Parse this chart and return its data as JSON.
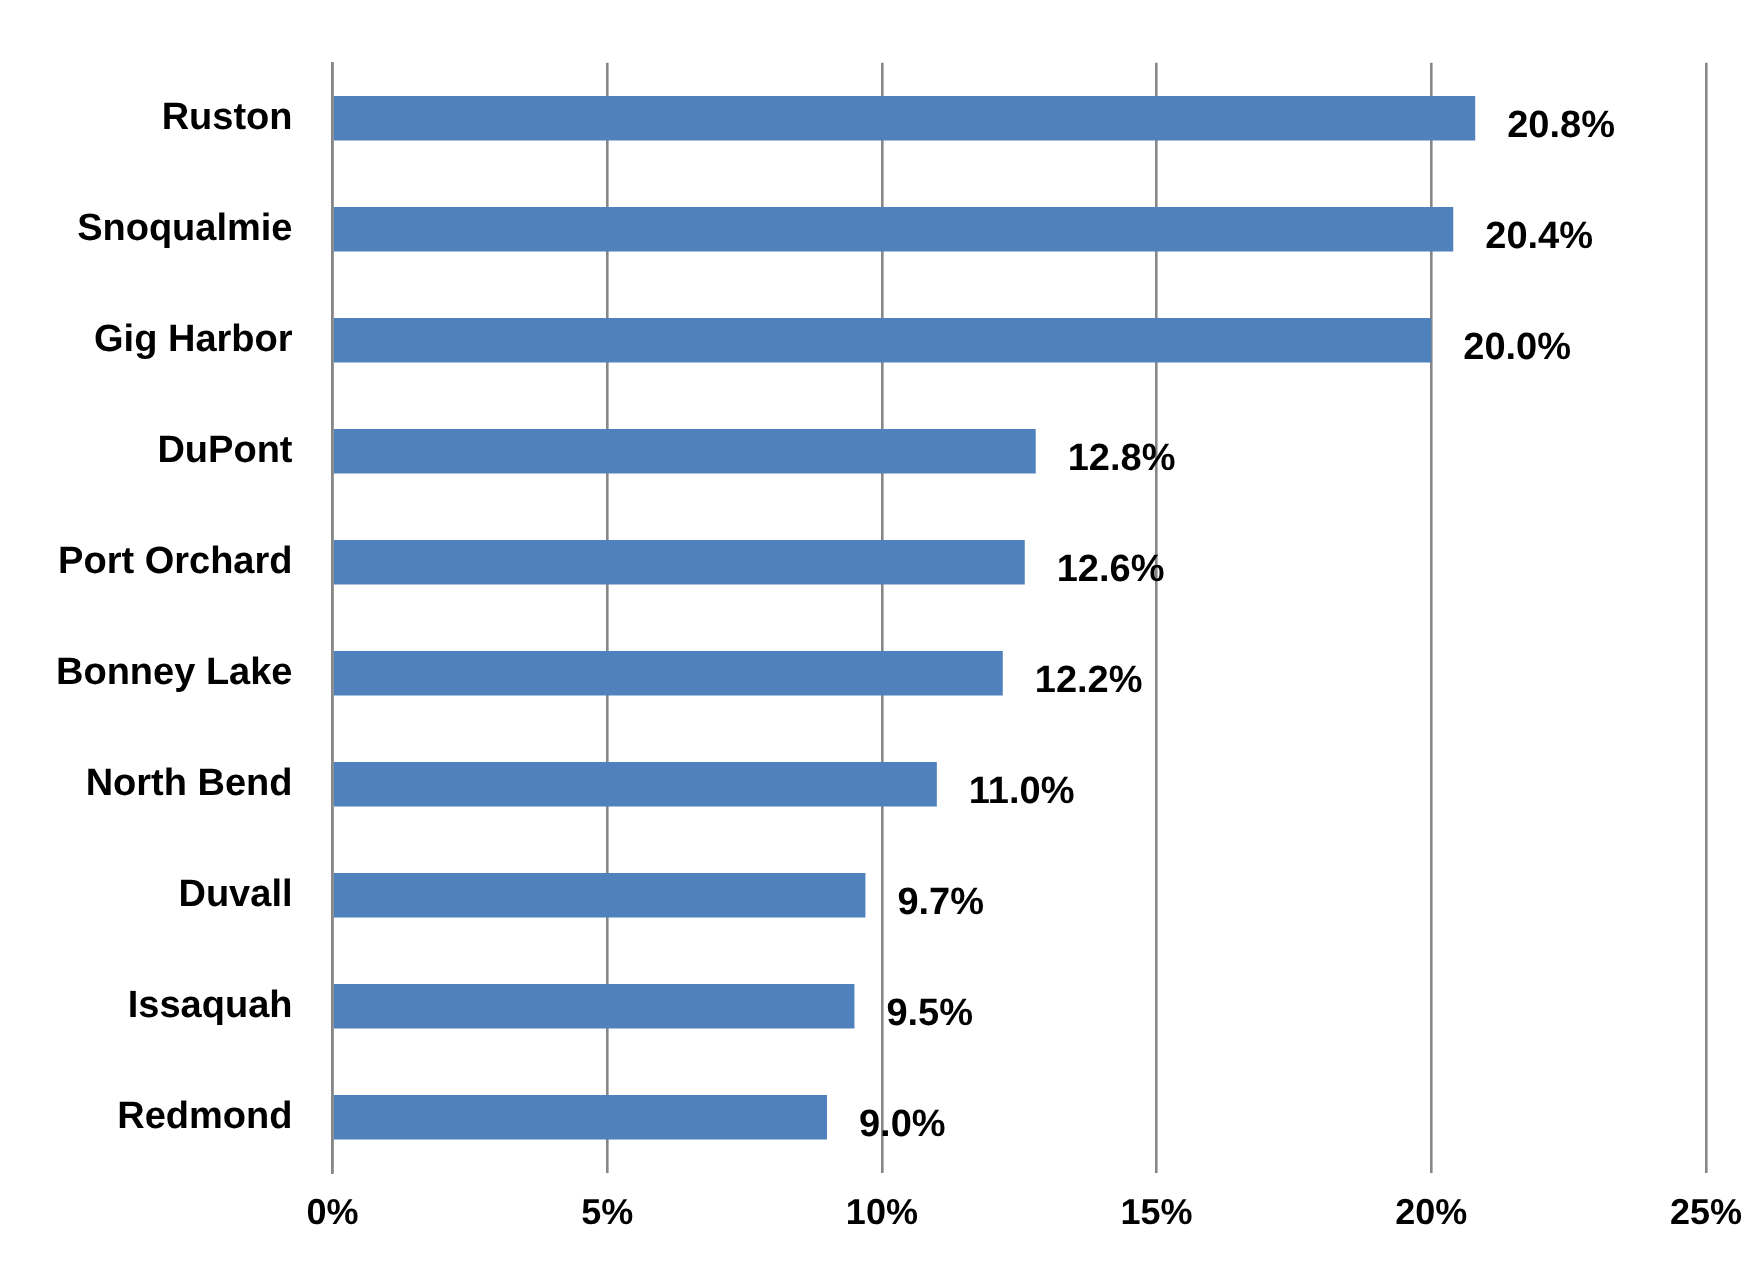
{
  "chart_data": {
    "type": "bar",
    "orientation": "horizontal",
    "categories": [
      "Ruston",
      "Snoqualmie",
      "Gig Harbor",
      "DuPont",
      "Port Orchard",
      "Bonney Lake",
      "North Bend",
      "Duvall",
      "Issaquah",
      "Redmond"
    ],
    "values": [
      20.8,
      20.4,
      20.0,
      12.8,
      12.6,
      12.2,
      11.0,
      9.7,
      9.5,
      9.0
    ],
    "value_labels": [
      "20.8%",
      "20.4%",
      "20.0%",
      "12.8%",
      "12.6%",
      "12.2%",
      "11.0%",
      "9.7%",
      "9.5%",
      "9.0%"
    ],
    "color": "#4f81bd",
    "xlim": [
      0,
      25
    ],
    "xticks": [
      {
        "value": 0,
        "label": "0%"
      },
      {
        "value": 5,
        "label": "5%"
      },
      {
        "value": 10,
        "label": "10%"
      },
      {
        "value": 15,
        "label": "15%"
      },
      {
        "value": 20,
        "label": "20%"
      },
      {
        "value": 25,
        "label": "25%"
      }
    ],
    "grid": "x",
    "legend": false
  }
}
